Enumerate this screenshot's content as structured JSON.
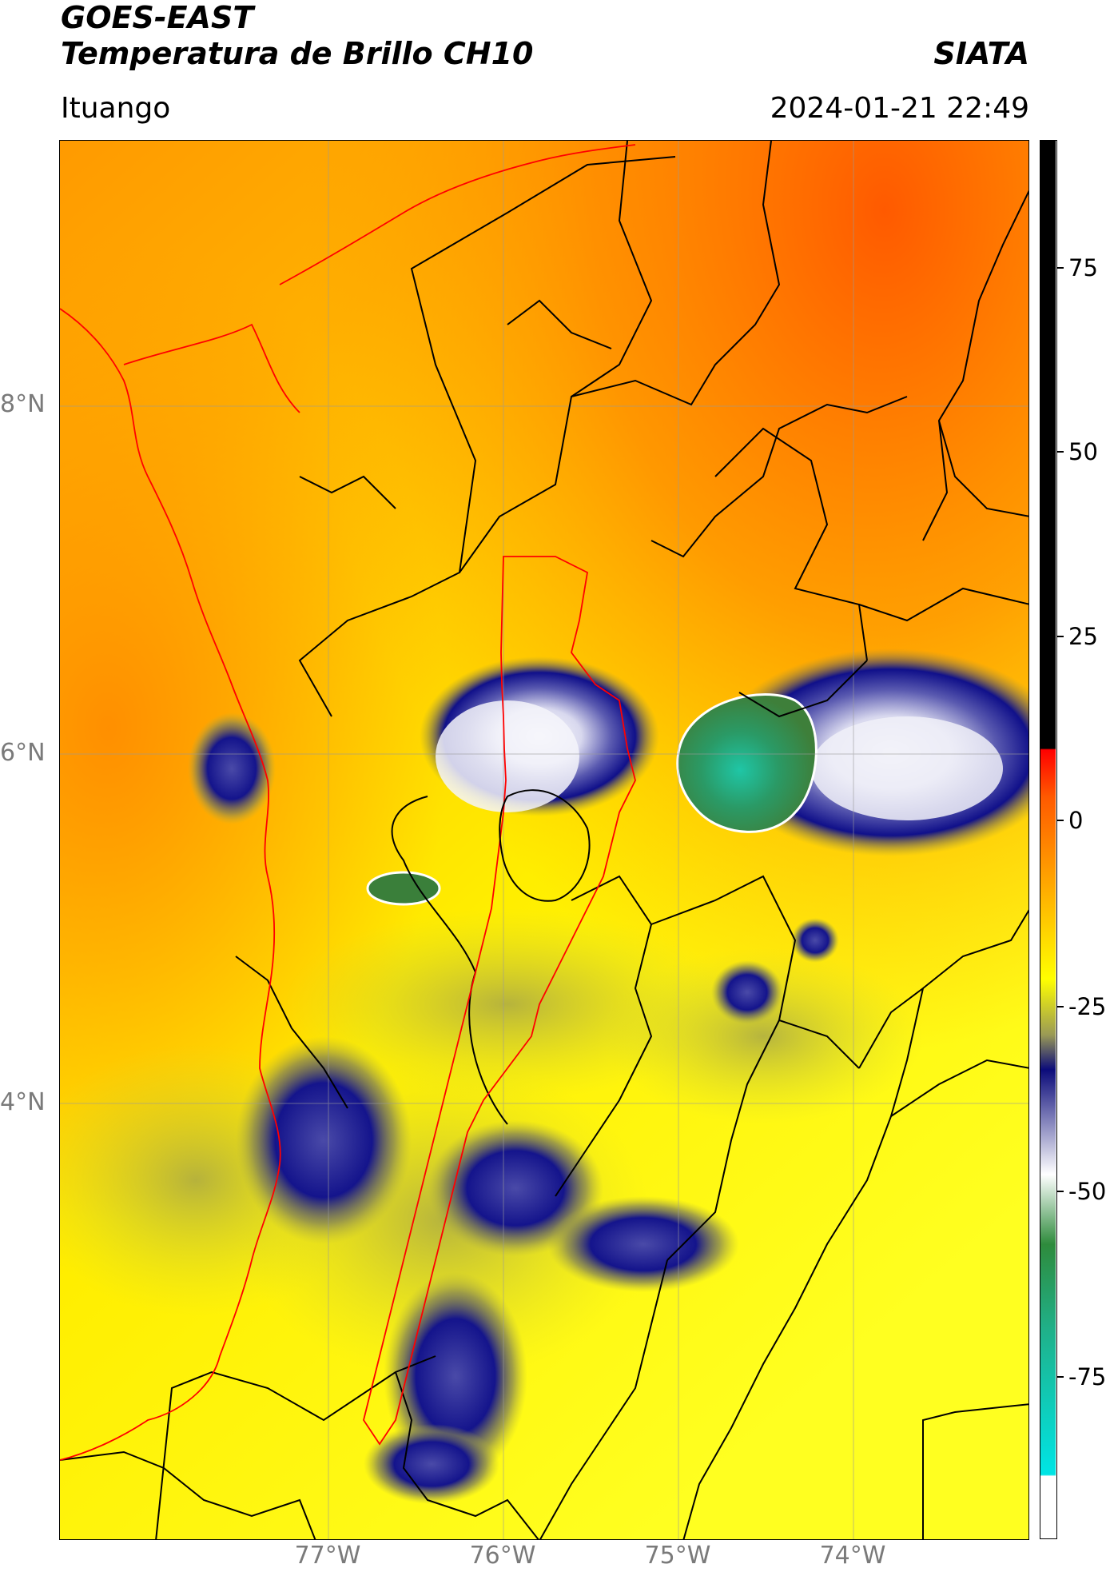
{
  "header": {
    "title": "GOES-EAST",
    "subtitle": "Temperatura de Brillo CH10",
    "org": "SIATA",
    "place": "Ituango",
    "datetime": "2024-01-21 22:49"
  },
  "map": {
    "lat_labels": [
      "8°N",
      "6°N",
      "4°N"
    ],
    "lon_labels": [
      "77°W",
      "76°W",
      "75°W",
      "74°W"
    ],
    "gridlines": true
  },
  "colorbar": {
    "ticks": [
      "75",
      "50",
      "25",
      "0",
      "-25",
      "-50",
      "-75"
    ],
    "colors": {
      "top": "#000000",
      "warm": "#ff0000",
      "orange": "#ff8c00",
      "yellow": "#ffff00",
      "olive": "#8f8f4a",
      "navy": "#0b0b7a",
      "white": "#ffffff",
      "green": "#2e8b3c",
      "teal": "#18d6c0"
    }
  },
  "legend": {
    "boundary_red": "#ff0000",
    "boundary_black": "#000000"
  }
}
